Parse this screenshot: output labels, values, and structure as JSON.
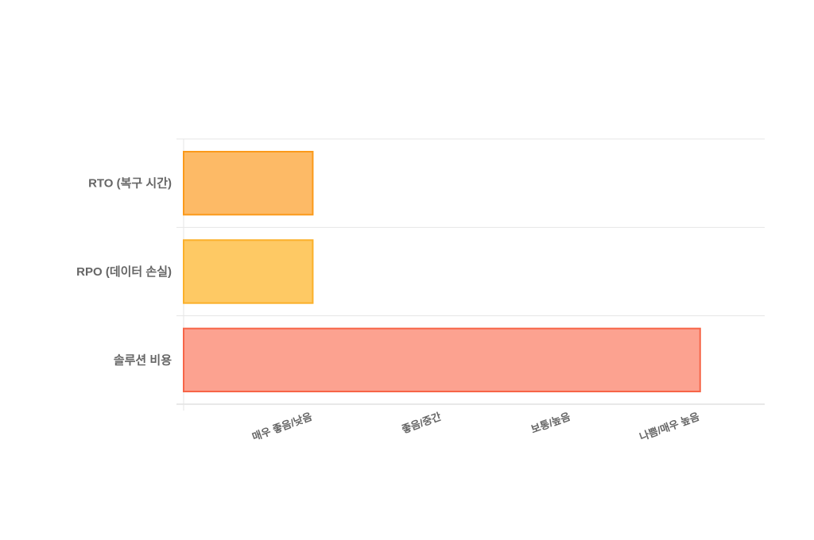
{
  "chart_data": {
    "type": "bar",
    "orientation": "horizontal",
    "categories": [
      "RTO (복구 시간)",
      "RPO (데이터 손실)",
      "솔루션 비용"
    ],
    "values": [
      1,
      1,
      4
    ],
    "x_tick_labels": [
      "매우 좋음/낮음",
      "좋음/중간",
      "보통/높음",
      "나쁨/매우 높음"
    ],
    "x_tick_values": [
      1,
      2,
      3,
      4
    ],
    "xlim": [
      0,
      4.5
    ],
    "grid": "horizontal category separators",
    "legend": "none",
    "colors": [
      {
        "fill": "#fdba66",
        "border": "#fb9a1a"
      },
      {
        "fill": "#fec964",
        "border": "#fbb02a"
      },
      {
        "fill": "#fca290",
        "border": "#f76548"
      }
    ]
  }
}
